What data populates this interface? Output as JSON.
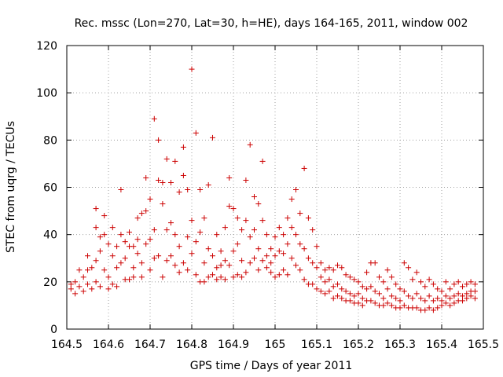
{
  "chart_data": {
    "type": "scatter",
    "title": "Rec. mssc (Lon=270, Lat=30, h=HE), days 164-165, 2011, window 002",
    "xlabel": "GPS time / Days of year 2011",
    "ylabel": "STEC from uqrg / TECUs",
    "xlim": [
      164.5,
      165.5
    ],
    "ylim": [
      0,
      120
    ],
    "xticks": [
      "164.5",
      "164.6",
      "164.7",
      "164.8",
      "164.9",
      "165",
      "165.1",
      "165.2",
      "165.3",
      "165.4",
      "165.5"
    ],
    "yticks": [
      "0",
      "20",
      "40",
      "60",
      "80",
      "100",
      "120"
    ],
    "grid": true,
    "marker": "+",
    "marker_color": "#cc0000",
    "series": [
      {
        "points": [
          [
            164.51,
            17
          ],
          [
            164.51,
            19
          ],
          [
            164.52,
            15
          ],
          [
            164.52,
            20
          ],
          [
            164.53,
            25
          ],
          [
            164.53,
            18
          ],
          [
            164.54,
            16
          ],
          [
            164.54,
            22
          ],
          [
            164.55,
            31
          ],
          [
            164.55,
            25
          ],
          [
            164.55,
            19
          ],
          [
            164.56,
            17
          ],
          [
            164.56,
            26
          ],
          [
            164.57,
            51
          ],
          [
            164.57,
            43
          ],
          [
            164.57,
            29
          ],
          [
            164.57,
            20
          ],
          [
            164.58,
            39
          ],
          [
            164.58,
            33
          ],
          [
            164.58,
            18
          ],
          [
            164.59,
            48
          ],
          [
            164.59,
            40
          ],
          [
            164.59,
            25
          ],
          [
            164.6,
            36
          ],
          [
            164.6,
            22
          ],
          [
            164.6,
            17
          ],
          [
            164.61,
            43
          ],
          [
            164.61,
            31
          ],
          [
            164.61,
            19
          ],
          [
            164.62,
            35
          ],
          [
            164.62,
            26
          ],
          [
            164.62,
            18
          ],
          [
            164.63,
            59
          ],
          [
            164.63,
            40
          ],
          [
            164.63,
            28
          ],
          [
            164.64,
            37
          ],
          [
            164.64,
            30
          ],
          [
            164.64,
            21
          ],
          [
            164.65,
            41
          ],
          [
            164.65,
            35
          ],
          [
            164.65,
            21
          ],
          [
            164.66,
            35
          ],
          [
            164.66,
            26
          ],
          [
            164.66,
            22
          ],
          [
            164.67,
            47
          ],
          [
            164.67,
            38
          ],
          [
            164.67,
            32
          ],
          [
            164.68,
            49
          ],
          [
            164.68,
            28
          ],
          [
            164.68,
            22
          ],
          [
            164.69,
            64
          ],
          [
            164.69,
            50
          ],
          [
            164.69,
            36
          ],
          [
            164.7,
            55
          ],
          [
            164.7,
            38
          ],
          [
            164.7,
            25
          ],
          [
            164.71,
            89
          ],
          [
            164.71,
            42
          ],
          [
            164.71,
            30
          ],
          [
            164.72,
            80
          ],
          [
            164.72,
            63
          ],
          [
            164.72,
            31
          ],
          [
            164.73,
            62
          ],
          [
            164.73,
            53
          ],
          [
            164.73,
            22
          ],
          [
            164.74,
            72
          ],
          [
            164.74,
            42
          ],
          [
            164.74,
            29
          ],
          [
            164.75,
            62
          ],
          [
            164.75,
            45
          ],
          [
            164.75,
            31
          ],
          [
            164.76,
            71
          ],
          [
            164.76,
            40
          ],
          [
            164.76,
            27
          ],
          [
            164.77,
            58
          ],
          [
            164.77,
            35
          ],
          [
            164.77,
            24
          ],
          [
            164.78,
            77
          ],
          [
            164.78,
            65
          ],
          [
            164.78,
            28
          ],
          [
            164.79,
            59
          ],
          [
            164.79,
            39
          ],
          [
            164.79,
            25
          ],
          [
            164.8,
            110
          ],
          [
            164.8,
            46
          ],
          [
            164.8,
            32
          ],
          [
            164.81,
            83
          ],
          [
            164.81,
            37
          ],
          [
            164.81,
            23
          ],
          [
            164.82,
            59
          ],
          [
            164.82,
            41
          ],
          [
            164.82,
            20
          ],
          [
            164.83,
            47
          ],
          [
            164.83,
            28
          ],
          [
            164.83,
            20
          ],
          [
            164.84,
            61
          ],
          [
            164.84,
            34
          ],
          [
            164.84,
            22
          ],
          [
            164.85,
            81
          ],
          [
            164.85,
            31
          ],
          [
            164.85,
            23
          ],
          [
            164.86,
            40
          ],
          [
            164.86,
            26
          ],
          [
            164.86,
            21
          ],
          [
            164.87,
            33
          ],
          [
            164.87,
            27
          ],
          [
            164.87,
            22
          ],
          [
            164.88,
            43
          ],
          [
            164.88,
            29
          ],
          [
            164.88,
            21
          ],
          [
            164.89,
            64
          ],
          [
            164.89,
            52
          ],
          [
            164.89,
            27
          ],
          [
            164.9,
            51
          ],
          [
            164.9,
            33
          ],
          [
            164.9,
            22
          ],
          [
            164.91,
            47
          ],
          [
            164.91,
            36
          ],
          [
            164.91,
            23
          ],
          [
            164.92,
            42
          ],
          [
            164.92,
            29
          ],
          [
            164.92,
            22
          ],
          [
            164.93,
            63
          ],
          [
            164.93,
            46
          ],
          [
            164.93,
            24
          ],
          [
            164.94,
            78
          ],
          [
            164.94,
            39
          ],
          [
            164.94,
            28
          ],
          [
            164.95,
            56
          ],
          [
            164.95,
            42
          ],
          [
            164.95,
            30
          ],
          [
            164.96,
            53
          ],
          [
            164.96,
            34
          ],
          [
            164.96,
            25
          ],
          [
            164.97,
            71
          ],
          [
            164.97,
            46
          ],
          [
            164.97,
            29
          ],
          [
            164.98,
            40
          ],
          [
            164.98,
            31
          ],
          [
            164.98,
            26
          ],
          [
            164.99,
            34
          ],
          [
            164.99,
            28
          ],
          [
            164.99,
            24
          ],
          [
            165.0,
            39
          ],
          [
            165.0,
            31
          ],
          [
            165.0,
            22
          ],
          [
            165.01,
            43
          ],
          [
            165.01,
            33
          ],
          [
            165.01,
            23
          ],
          [
            165.02,
            40
          ],
          [
            165.02,
            32
          ],
          [
            165.02,
            25
          ],
          [
            165.03,
            47
          ],
          [
            165.03,
            36
          ],
          [
            165.03,
            23
          ],
          [
            165.04,
            55
          ],
          [
            165.04,
            43
          ],
          [
            165.04,
            30
          ],
          [
            165.05,
            59
          ],
          [
            165.05,
            40
          ],
          [
            165.05,
            27
          ],
          [
            165.06,
            49
          ],
          [
            165.06,
            36
          ],
          [
            165.06,
            25
          ],
          [
            165.07,
            68
          ],
          [
            165.07,
            34
          ],
          [
            165.07,
            21
          ],
          [
            165.08,
            47
          ],
          [
            165.08,
            30
          ],
          [
            165.08,
            19
          ],
          [
            165.09,
            42
          ],
          [
            165.09,
            28
          ],
          [
            165.09,
            19
          ],
          [
            165.1,
            35
          ],
          [
            165.1,
            26
          ],
          [
            165.1,
            17
          ],
          [
            165.11,
            28
          ],
          [
            165.11,
            22
          ],
          [
            165.11,
            16
          ],
          [
            165.12,
            25
          ],
          [
            165.12,
            20
          ],
          [
            165.12,
            15
          ],
          [
            165.13,
            26
          ],
          [
            165.13,
            21
          ],
          [
            165.13,
            16
          ],
          [
            165.14,
            25
          ],
          [
            165.14,
            18
          ],
          [
            165.14,
            13
          ],
          [
            165.15,
            27
          ],
          [
            165.15,
            19
          ],
          [
            165.15,
            14
          ],
          [
            165.16,
            26
          ],
          [
            165.16,
            17
          ],
          [
            165.16,
            13
          ],
          [
            165.17,
            23
          ],
          [
            165.17,
            16
          ],
          [
            165.17,
            12
          ],
          [
            165.18,
            22
          ],
          [
            165.18,
            15
          ],
          [
            165.18,
            12
          ],
          [
            165.19,
            21
          ],
          [
            165.19,
            14
          ],
          [
            165.19,
            11
          ],
          [
            165.2,
            20
          ],
          [
            165.2,
            15
          ],
          [
            165.2,
            11
          ],
          [
            165.21,
            18
          ],
          [
            165.21,
            13
          ],
          [
            165.21,
            10
          ],
          [
            165.22,
            24
          ],
          [
            165.22,
            17
          ],
          [
            165.22,
            12
          ],
          [
            165.23,
            28
          ],
          [
            165.23,
            18
          ],
          [
            165.23,
            12
          ],
          [
            165.24,
            28
          ],
          [
            165.24,
            16
          ],
          [
            165.24,
            11
          ],
          [
            165.25,
            22
          ],
          [
            165.25,
            15
          ],
          [
            165.25,
            10
          ],
          [
            165.26,
            20
          ],
          [
            165.26,
            13
          ],
          [
            165.26,
            10
          ],
          [
            165.27,
            25
          ],
          [
            165.27,
            17
          ],
          [
            165.27,
            11
          ],
          [
            165.28,
            22
          ],
          [
            165.28,
            14
          ],
          [
            165.28,
            10
          ],
          [
            165.29,
            19
          ],
          [
            165.29,
            13
          ],
          [
            165.29,
            9
          ],
          [
            165.3,
            17
          ],
          [
            165.3,
            12
          ],
          [
            165.3,
            9
          ],
          [
            165.31,
            28
          ],
          [
            165.31,
            16
          ],
          [
            165.31,
            10
          ],
          [
            165.32,
            26
          ],
          [
            165.32,
            14
          ],
          [
            165.32,
            9
          ],
          [
            165.33,
            21
          ],
          [
            165.33,
            13
          ],
          [
            165.33,
            9
          ],
          [
            165.34,
            24
          ],
          [
            165.34,
            15
          ],
          [
            165.34,
            9
          ],
          [
            165.35,
            20
          ],
          [
            165.35,
            13
          ],
          [
            165.35,
            8
          ],
          [
            165.36,
            18
          ],
          [
            165.36,
            12
          ],
          [
            165.36,
            8
          ],
          [
            165.37,
            21
          ],
          [
            165.37,
            14
          ],
          [
            165.37,
            9
          ],
          [
            165.38,
            19
          ],
          [
            165.38,
            12
          ],
          [
            165.38,
            8
          ],
          [
            165.39,
            17
          ],
          [
            165.39,
            13
          ],
          [
            165.39,
            9
          ],
          [
            165.4,
            16
          ],
          [
            165.4,
            12
          ],
          [
            165.4,
            10
          ],
          [
            165.41,
            20
          ],
          [
            165.41,
            14
          ],
          [
            165.41,
            11
          ],
          [
            165.42,
            17
          ],
          [
            165.42,
            13
          ],
          [
            165.42,
            10
          ],
          [
            165.43,
            19
          ],
          [
            165.43,
            14
          ],
          [
            165.43,
            11
          ],
          [
            165.44,
            20
          ],
          [
            165.44,
            15
          ],
          [
            165.44,
            12
          ],
          [
            165.45,
            18
          ],
          [
            165.45,
            14
          ],
          [
            165.45,
            12
          ],
          [
            165.46,
            19
          ],
          [
            165.46,
            15
          ],
          [
            165.46,
            13
          ],
          [
            165.47,
            20
          ],
          [
            165.47,
            16
          ],
          [
            165.47,
            14
          ],
          [
            165.48,
            19
          ],
          [
            165.48,
            16
          ],
          [
            165.48,
            13
          ]
        ]
      }
    ]
  }
}
